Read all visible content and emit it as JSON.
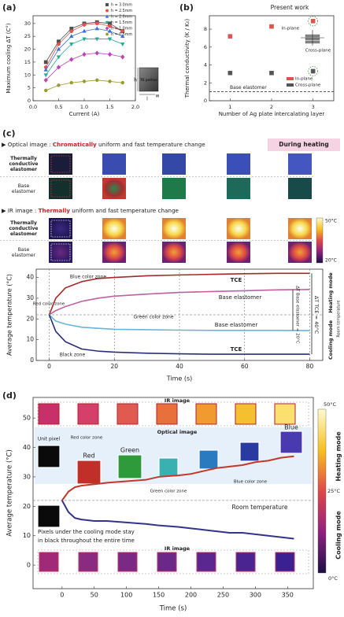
{
  "chart_data": [
    {
      "type": "line",
      "panel_label": "(a)",
      "x_label": "Current (A)",
      "y_label": "Maximum cooling ΔT (C°)",
      "x": [
        0.25,
        0.5,
        0.75,
        1.0,
        1.25,
        1.5,
        1.75
      ],
      "xlim": [
        0,
        2
      ],
      "xticks": [
        {
          "value": 0,
          "label": "0.0"
        },
        0.5,
        {
          "value": 1,
          "label": "1.0"
        },
        1.5,
        {
          "value": 2,
          "label": "2.0"
        }
      ],
      "ylim": [
        0,
        33
      ],
      "yticks": [
        0,
        5,
        10,
        15,
        20,
        25,
        30
      ],
      "legend": "upper right",
      "series": [
        {
          "name": "h = 3.0mm",
          "color": "#4d4d4d",
          "marker": "square",
          "values": [
            15,
            23,
            28,
            30,
            30.5,
            30,
            27
          ]
        },
        {
          "name": "h = 2.5mm",
          "color": "#e0524f",
          "marker": "circle",
          "values": [
            13,
            22,
            27,
            29.5,
            30,
            29,
            27
          ]
        },
        {
          "name": "h = 2.0mm",
          "color": "#3d6fd6",
          "marker": "triangle-up",
          "values": [
            12,
            20,
            25,
            27,
            28,
            27,
            25
          ]
        },
        {
          "name": "h = 1.5mm",
          "color": "#27a99a",
          "marker": "triangle-down",
          "values": [
            10,
            17,
            22,
            24,
            24,
            24,
            22
          ]
        },
        {
          "name": "h = 1.0mm",
          "color": "#b845b5",
          "marker": "diamond",
          "values": [
            8,
            13,
            16,
            18,
            18.5,
            18,
            17
          ]
        },
        {
          "name": "h = 0.5mm",
          "color": "#9a9a2a",
          "marker": "hexagon",
          "values": [
            4,
            6,
            7,
            7.5,
            8,
            7.5,
            7
          ]
        }
      ],
      "annotations": [
        "TE peltier",
        "h",
        "l",
        "w"
      ]
    },
    {
      "type": "scatter",
      "panel_label": "(b)",
      "x_label": "Number of Ag plate intercalating layer",
      "y_label": "Thermal conductivity (K / K₀)",
      "x": [
        1,
        2,
        3
      ],
      "xlim": [
        0.5,
        3.5
      ],
      "xticks": [
        1,
        2,
        3
      ],
      "ylim": [
        0,
        9.5
      ],
      "yticks": [
        0,
        2,
        4,
        6,
        8
      ],
      "legend": "lower right",
      "series": [
        {
          "name": "In-plane",
          "color": "#d9534f",
          "marker": "square",
          "values": [
            7.2,
            8.3,
            8.9
          ]
        },
        {
          "name": "Cross-plane",
          "color": "#555555",
          "marker": "square",
          "values": [
            3.1,
            3.1,
            3.3
          ]
        }
      ],
      "reference_line": {
        "value": 1,
        "label": "Base elastomer"
      },
      "annotations": [
        "Present work",
        "In-plane",
        "Cross-plane"
      ]
    },
    {
      "type": "line",
      "panel_label": "(c)",
      "x_label": "Time (s)",
      "y_label": "Average temperature (°C)",
      "x": [
        0,
        2,
        5,
        10,
        15,
        20,
        30,
        40,
        50,
        60,
        70,
        80
      ],
      "xlim": [
        -4,
        84
      ],
      "xticks": [
        0,
        20,
        40,
        60,
        80
      ],
      "ylim": [
        0,
        44
      ],
      "yticks": [
        0,
        10,
        20,
        30,
        40
      ],
      "grid": "x",
      "series": [
        {
          "name": "TCE",
          "color": "#a52a2a",
          "values": [
            22,
            30,
            35,
            38,
            39.5,
            40,
            40.8,
            41.2,
            41.5,
            41.8,
            42,
            42
          ]
        },
        {
          "name": "Base elastomer",
          "color": "#c060a0",
          "values": [
            22,
            24,
            26,
            28.5,
            30,
            31,
            32,
            32.8,
            33.2,
            33.6,
            34,
            34.2
          ]
        },
        {
          "name": "Base elastomer",
          "color": "#6ab4d8",
          "values": [
            22,
            19,
            17.5,
            16,
            15.5,
            15,
            14.8,
            14.6,
            14.5,
            14.5,
            14.5,
            14.4
          ]
        },
        {
          "name": "TCE",
          "color": "#2b2f7a",
          "values": [
            22,
            14,
            9,
            5.5,
            4.5,
            4,
            3.5,
            3.2,
            3,
            3,
            3,
            3
          ]
        }
      ],
      "reference_line": {
        "value": 22,
        "label": "Room temperature"
      },
      "annotations": [
        "Red color zone",
        "Blue color zone",
        "Green color zone",
        "Black zone",
        "Heating mode",
        "Cooling mode",
        "ΔT TCE ≈ 40°C",
        "ΔT Base elastomer ≈ 20°C"
      ]
    },
    {
      "type": "line",
      "panel_label": "(d)",
      "x_label": "Time (s)",
      "y_label": "Average temperature (°C)",
      "x": [
        0,
        10,
        20,
        30,
        50,
        70,
        100,
        130,
        150,
        180,
        200,
        220,
        240,
        260,
        280,
        300,
        320,
        340,
        360
      ],
      "xlim": [
        -45,
        390
      ],
      "xticks": [
        0,
        50,
        100,
        150,
        200,
        250,
        300,
        350
      ],
      "ylim": [
        -8,
        57
      ],
      "yticks": [
        0,
        10,
        20,
        30,
        40,
        50
      ],
      "series": [
        {
          "name": "Heating mode",
          "color": "#c0392b",
          "values": [
            22,
            25,
            26.5,
            27,
            27.5,
            28,
            28.5,
            29,
            30,
            30.5,
            31,
            32,
            33,
            33.5,
            34,
            35,
            35.5,
            36.5,
            37
          ]
        },
        {
          "name": "Cooling mode",
          "color": "#33338a",
          "values": [
            22,
            18,
            16,
            15.5,
            15,
            15,
            14.5,
            14,
            13.5,
            13,
            12.5,
            12,
            11.5,
            11,
            11,
            10.5,
            10,
            9.5,
            9
          ]
        }
      ],
      "reference_line": {
        "value": 22,
        "label": "Room temperature"
      },
      "colorbar_labels": [
        "50°C",
        "25°C",
        "0°C"
      ],
      "annotations": [
        "IR image",
        "Optical image",
        "IR image",
        "Unit pixel",
        "Red color zone",
        "Red",
        "Green",
        "Blue",
        "Green color zone",
        "Blue color zone",
        "Pixels under the cooling mode stay",
        "in black throughout the entire time"
      ]
    }
  ],
  "panel_c_images": {
    "optical_header": [
      "▶ Optical image : ",
      "Chromatically",
      " uniform and fast temperature change"
    ],
    "heating_badge": "During heating",
    "ir_header": [
      "▶ IR image : ",
      "Thermally",
      " uniform and fast temperature change"
    ],
    "row_labels": [
      [
        "Thermally",
        "conductive",
        "elastomer"
      ],
      [
        "Base",
        "elastomer"
      ]
    ],
    "colorbar_labels": [
      "50°C",
      "20°C"
    ]
  }
}
